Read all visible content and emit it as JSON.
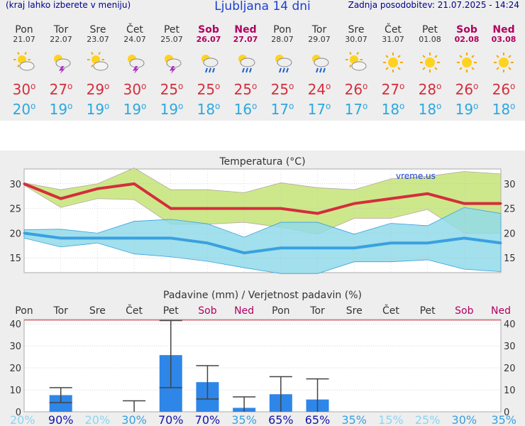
{
  "header": {
    "left_note": "(kraj lahko izberete v meniju)",
    "title": "Ljubljana 14 dni",
    "updated": "Zadnja posodobitev: 21.07.2025 - 14:24"
  },
  "days": [
    {
      "name": "Pon",
      "date": "21.07",
      "weekend": false,
      "icon": "sun-cloud-icon",
      "tmax": "30",
      "tmin": "20"
    },
    {
      "name": "Tor",
      "date": "22.07",
      "weekend": false,
      "icon": "thunderstorm-sun-icon",
      "tmax": "27",
      "tmin": "19"
    },
    {
      "name": "Sre",
      "date": "23.07",
      "weekend": false,
      "icon": "sun-cloud-icon",
      "tmax": "29",
      "tmin": "19"
    },
    {
      "name": "Čet",
      "date": "24.07",
      "weekend": false,
      "icon": "thunderstorm-sun-icon",
      "tmax": "30",
      "tmin": "19"
    },
    {
      "name": "Pet",
      "date": "25.07",
      "weekend": false,
      "icon": "thunderstorm-sun-icon",
      "tmax": "25",
      "tmin": "19"
    },
    {
      "name": "Sob",
      "date": "26.07",
      "weekend": true,
      "icon": "rain-sun-icon",
      "tmax": "25",
      "tmin": "18"
    },
    {
      "name": "Ned",
      "date": "27.07",
      "weekend": true,
      "icon": "rain-sun-icon",
      "tmax": "25",
      "tmin": "16"
    },
    {
      "name": "Pon",
      "date": "28.07",
      "weekend": false,
      "icon": "rain-sun-icon",
      "tmax": "25",
      "tmin": "17"
    },
    {
      "name": "Tor",
      "date": "29.07",
      "weekend": false,
      "icon": "rain-sun-icon",
      "tmax": "24",
      "tmin": "17"
    },
    {
      "name": "Sre",
      "date": "30.07",
      "weekend": false,
      "icon": "sun-cloud-icon",
      "tmax": "26",
      "tmin": "17"
    },
    {
      "name": "Čet",
      "date": "31.07",
      "weekend": false,
      "icon": "sun-icon",
      "tmax": "27",
      "tmin": "18"
    },
    {
      "name": "Pet",
      "date": "01.08",
      "weekend": false,
      "icon": "sun-icon",
      "tmax": "28",
      "tmin": "18"
    },
    {
      "name": "Sob",
      "date": "02.08",
      "weekend": true,
      "icon": "sun-icon",
      "tmax": "26",
      "tmin": "19"
    },
    {
      "name": "Ned",
      "date": "03.08",
      "weekend": true,
      "icon": "sun-icon",
      "tmax": "26",
      "tmin": "18"
    }
  ],
  "chart_data": [
    {
      "type": "line",
      "title": "Temperatura (°C)",
      "watermark": "vreme.us",
      "x": [
        "Pon",
        "Tor",
        "Sre",
        "Čet",
        "Pet",
        "Sob",
        "Ned",
        "Pon",
        "Tor",
        "Sre",
        "Čet",
        "Pet",
        "Sob",
        "Ned"
      ],
      "ylim": [
        12,
        33
      ],
      "yticks": [
        "15",
        "20",
        "25",
        "30"
      ],
      "series": [
        {
          "name": "max",
          "values": [
            30,
            27,
            29,
            30,
            25,
            25,
            25,
            25,
            24,
            26,
            27,
            28,
            26,
            26
          ]
        },
        {
          "name": "min",
          "values": [
            20,
            19,
            19,
            19,
            19,
            18,
            16,
            17,
            17,
            17,
            18,
            18,
            19,
            18
          ]
        }
      ],
      "max_band": {
        "high": [
          30.2,
          28.8,
          30,
          33.2,
          28.8,
          28.8,
          28.2,
          30.2,
          29.2,
          28.8,
          31,
          31.5,
          32.5,
          32
        ],
        "low": [
          29.7,
          25.2,
          27,
          26.8,
          21.8,
          21.8,
          22.2,
          21.2,
          19.8,
          23,
          23,
          24.8,
          20,
          20
        ]
      },
      "min_band": {
        "high": [
          20.7,
          20.8,
          20,
          22.4,
          22.8,
          21.9,
          19.2,
          22.2,
          22.2,
          19.8,
          22,
          21.5,
          25.2,
          24
        ]
      },
      "min_band_low": [
        19,
        17.2,
        18,
        15.8,
        15.2,
        14.3,
        13,
        11.8,
        11.8,
        14.2,
        14.2,
        14.6,
        12.7,
        12.2
      ]
    },
    {
      "type": "bar",
      "title": "Padavine (mm) / Verjetnost padavin (%)",
      "x": [
        "Pon",
        "Tor",
        "Sre",
        "Čet",
        "Pet",
        "Sob",
        "Ned",
        "Pon",
        "Tor",
        "Sre",
        "Čet",
        "Pet",
        "Sob",
        "Ned"
      ],
      "ylim": [
        0,
        42
      ],
      "yticks": [
        "0",
        "10",
        "20",
        "30",
        "40"
      ],
      "values": [
        0,
        7.6,
        0,
        0,
        25.8,
        13.5,
        1.8,
        8,
        5.6,
        0,
        0,
        0,
        0,
        0
      ],
      "error_low": [
        0,
        4.2,
        0,
        0,
        11,
        5.8,
        0,
        0,
        0,
        0,
        0,
        0,
        0,
        0
      ],
      "error_high": [
        0,
        11,
        0,
        5,
        41.5,
        21,
        6.8,
        16,
        15,
        0,
        0,
        0,
        0,
        0
      ],
      "probability": [
        "20%",
        "90%",
        "20%",
        "30%",
        "70%",
        "70%",
        "35%",
        "65%",
        "65%",
        "35%",
        "15%",
        "25%",
        "30%",
        "35%"
      ]
    }
  ],
  "colors": {
    "max_line": "#d42e3c",
    "min_line": "#3aa0e0",
    "max_band": "#cde88a",
    "min_band": "#90dbe9",
    "overlap": "#8fd47c",
    "bar": "#2e86e8",
    "weekend": "#b00060",
    "grid": "#bbbbbb"
  }
}
